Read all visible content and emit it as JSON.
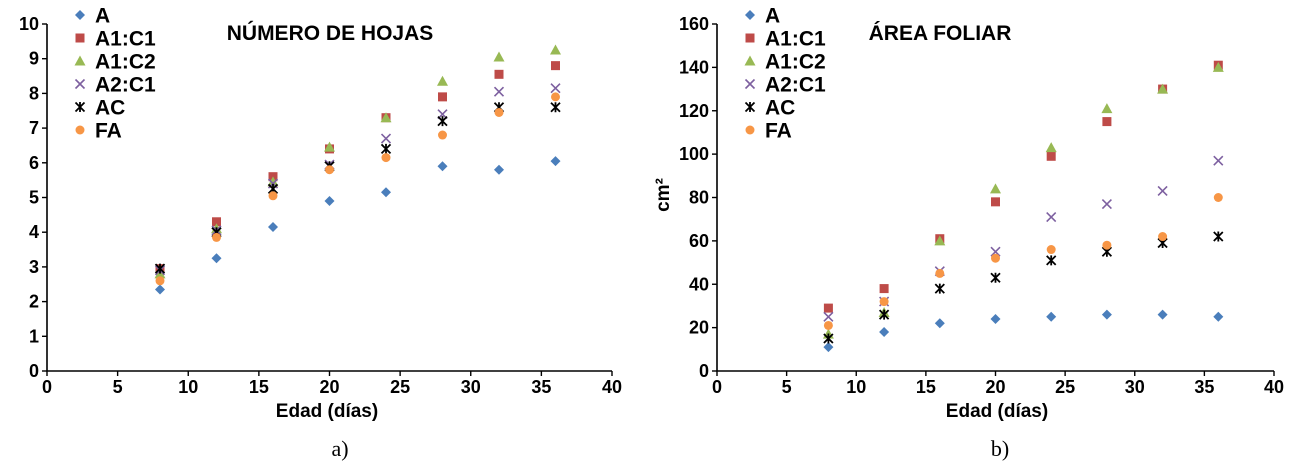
{
  "series_styles": {
    "A": {
      "color": "#4a7ebb",
      "marker": "diamond"
    },
    "A1:C1": {
      "color": "#be4b48",
      "marker": "square"
    },
    "A1:C2": {
      "color": "#98b954",
      "marker": "triangle"
    },
    "A2:C1": {
      "color": "#7d60a0",
      "marker": "x"
    },
    "AC": {
      "color": "#000000",
      "marker": "star"
    },
    "FA": {
      "color": "#f79646",
      "marker": "circle"
    }
  },
  "chart_data": [
    {
      "type": "scatter",
      "title": "NÚMERO DE HOJAS",
      "caption": "a)",
      "xlabel": "Edad (días)",
      "ylabel": "",
      "xlim": [
        0,
        40
      ],
      "ylim": [
        0,
        10
      ],
      "xticks": [
        "0",
        "5",
        "10",
        "15",
        "20",
        "25",
        "30",
        "35",
        "40"
      ],
      "yticks": [
        "0",
        "1",
        "2",
        "3",
        "4",
        "5",
        "6",
        "7",
        "8",
        "9",
        "10"
      ],
      "legend_position": "top-left",
      "grid": false,
      "x": [
        8,
        12,
        16,
        20,
        24,
        28,
        32,
        36
      ],
      "series": [
        {
          "name": "A",
          "values": [
            2.35,
            3.25,
            4.15,
            4.9,
            5.15,
            5.9,
            5.8,
            6.05
          ]
        },
        {
          "name": "A1:C1",
          "values": [
            2.95,
            4.3,
            5.6,
            6.4,
            7.3,
            7.9,
            8.55,
            8.8
          ]
        },
        {
          "name": "A1:C2",
          "values": [
            2.8,
            4.1,
            5.45,
            6.45,
            7.3,
            8.35,
            9.05,
            9.25
          ]
        },
        {
          "name": "A2:C1",
          "values": [
            2.9,
            4.05,
            5.4,
            5.95,
            6.7,
            7.4,
            8.05,
            8.15
          ]
        },
        {
          "name": "AC",
          "values": [
            2.95,
            4.0,
            5.25,
            5.9,
            6.4,
            7.2,
            7.6,
            7.6
          ]
        },
        {
          "name": "FA",
          "values": [
            2.6,
            3.85,
            5.05,
            5.8,
            6.15,
            6.8,
            7.45,
            7.9
          ]
        }
      ]
    },
    {
      "type": "scatter",
      "title": "ÁREA FOLIAR",
      "caption": "b)",
      "xlabel": "Edad (días)",
      "ylabel": "cm²",
      "xlim": [
        0,
        40
      ],
      "ylim": [
        0,
        160
      ],
      "xticks": [
        "0",
        "5",
        "10",
        "15",
        "20",
        "25",
        "30",
        "35",
        "40"
      ],
      "yticks": [
        "0",
        "20",
        "40",
        "60",
        "80",
        "100",
        "120",
        "140",
        "160"
      ],
      "legend_position": "top-left",
      "grid": false,
      "x": [
        8,
        12,
        16,
        20,
        24,
        28,
        32,
        36
      ],
      "series": [
        {
          "name": "A",
          "values": [
            11,
            18,
            22,
            24,
            25,
            26,
            26,
            25
          ]
        },
        {
          "name": "A1:C1",
          "values": [
            29,
            38,
            61,
            78,
            99,
            115,
            130,
            141
          ]
        },
        {
          "name": "A1:C2",
          "values": [
            17,
            27,
            60,
            84,
            103,
            121,
            130,
            140
          ]
        },
        {
          "name": "A2:C1",
          "values": [
            25,
            32,
            46,
            55,
            71,
            77,
            83,
            97
          ]
        },
        {
          "name": "AC",
          "values": [
            15,
            26,
            38,
            43,
            51,
            55,
            59,
            62
          ]
        },
        {
          "name": "FA",
          "values": [
            21,
            32,
            45,
            52,
            56,
            58,
            62,
            80
          ]
        }
      ]
    }
  ]
}
